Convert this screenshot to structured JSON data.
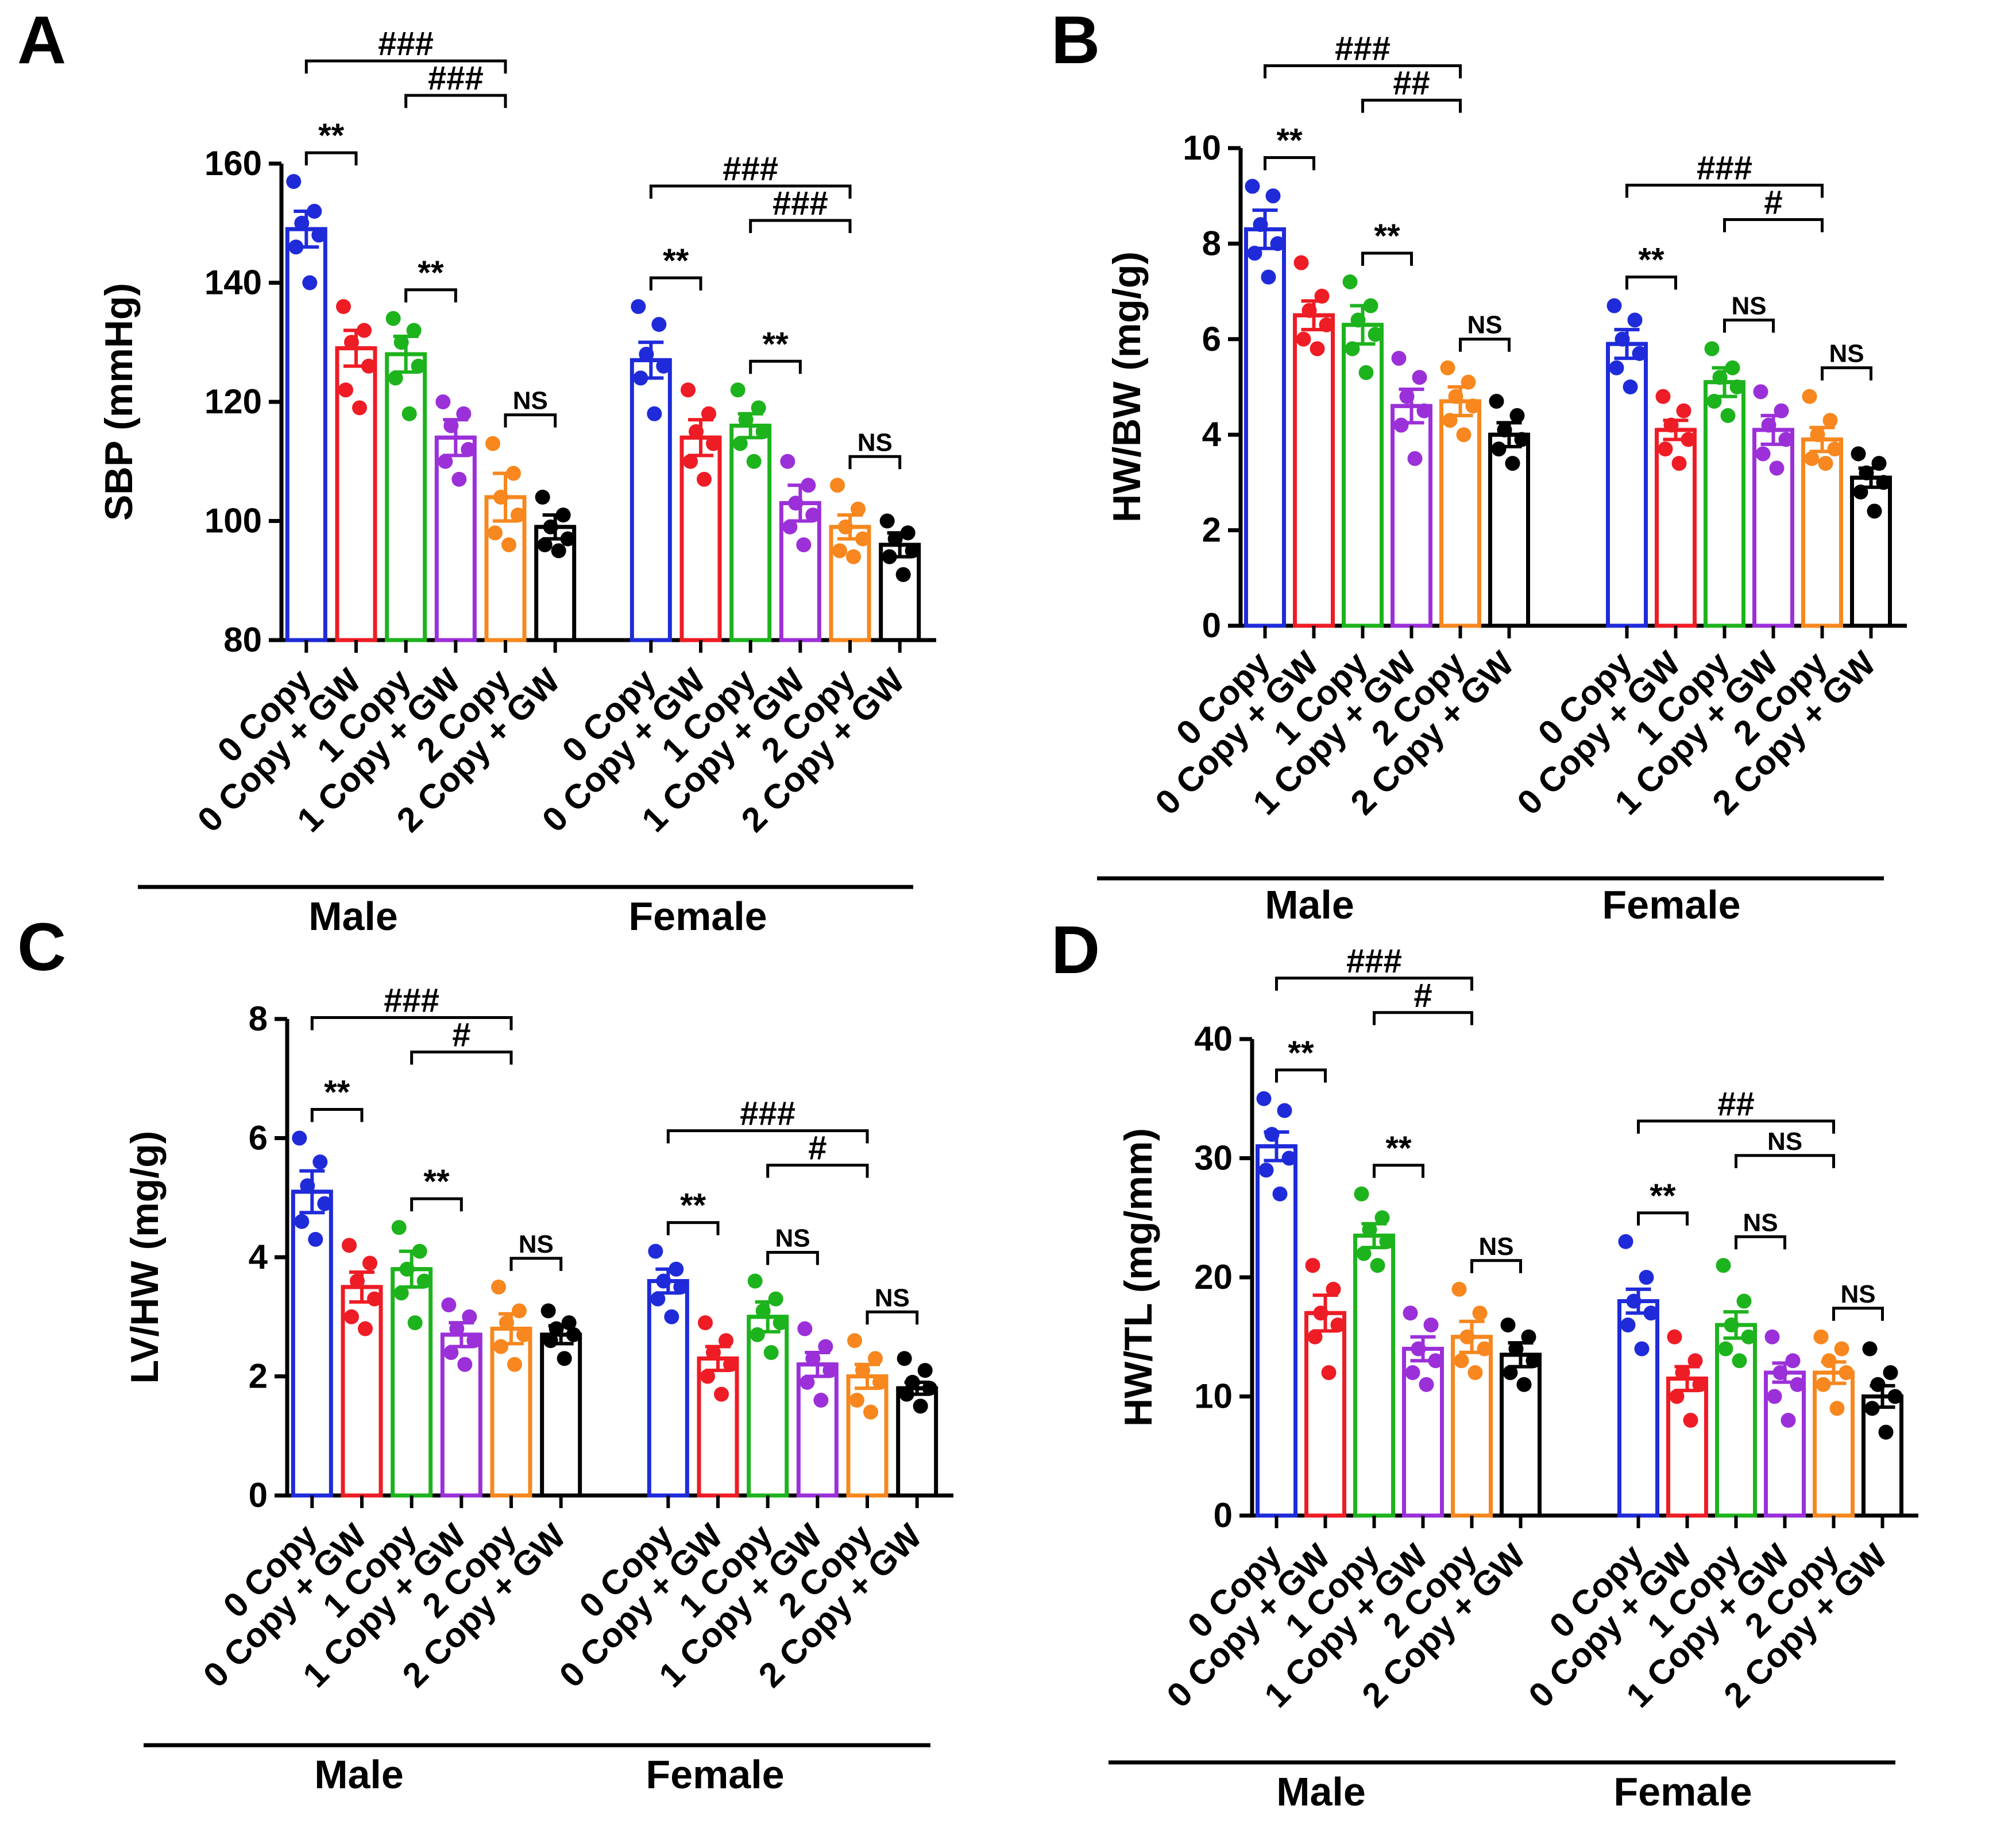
{
  "figure": {
    "categories": [
      "0 Copy",
      "0 Copy + GW",
      "1 Copy",
      "1 Copy + GW",
      "2 Copy",
      "2 Copy + GW"
    ],
    "groups": [
      "Male",
      "Female"
    ],
    "colors": [
      "#1f2bd9",
      "#ee1c25",
      "#1db31d",
      "#9b30d9",
      "#f7871e",
      "#000000"
    ]
  },
  "chart_data": [
    {
      "panel": "A",
      "type": "bar",
      "ylabel": "SBP (mmHg)",
      "ylim": [
        80,
        160
      ],
      "yticks": [
        80,
        100,
        120,
        140,
        160
      ],
      "series": [
        {
          "group": "Male",
          "values": [
            149,
            129,
            128,
            114,
            104,
            99
          ],
          "errors": [
            3,
            3,
            3,
            3,
            4,
            2
          ],
          "points": [
            [
              157,
              152,
              150,
              148,
              146,
              140
            ],
            [
              136,
              132,
              130,
              126,
              122,
              119
            ],
            [
              134,
              132,
              130,
              126,
              124,
              118
            ],
            [
              120,
              118,
              116,
              112,
              110,
              107
            ],
            [
              113,
              108,
              104,
              101,
              98,
              96
            ],
            [
              104,
              101,
              99,
              97,
              96,
              95
            ]
          ]
        },
        {
          "group": "Female",
          "values": [
            127,
            114,
            116,
            103,
            99,
            96
          ],
          "errors": [
            3,
            3,
            2,
            3,
            2,
            2
          ],
          "points": [
            [
              136,
              133,
              128,
              126,
              124,
              118
            ],
            [
              122,
              118,
              115,
              113,
              110,
              107
            ],
            [
              122,
              119,
              117,
              115,
              113,
              110
            ],
            [
              110,
              106,
              103,
              101,
              99,
              96
            ],
            [
              106,
              102,
              99,
              97,
              95,
              94
            ],
            [
              100,
              98,
              97,
              95,
              94,
              91
            ]
          ]
        }
      ],
      "brackets": [
        {
          "group": "Male",
          "from": 0,
          "to": 1,
          "level": 0,
          "label": "**"
        },
        {
          "group": "Male",
          "from": 0,
          "to": 4,
          "level": 1,
          "label": "###"
        },
        {
          "group": "Male",
          "from": 2,
          "to": 3,
          "level": 0,
          "label": "**"
        },
        {
          "group": "Male",
          "from": 2,
          "to": 4,
          "level": 1,
          "label": "###"
        },
        {
          "group": "Male",
          "from": 4,
          "to": 5,
          "level": 0,
          "label": "NS"
        },
        {
          "group": "Female",
          "from": 0,
          "to": 1,
          "level": 0,
          "label": "**"
        },
        {
          "group": "Female",
          "from": 0,
          "to": 4,
          "level": 1,
          "label": "###"
        },
        {
          "group": "Female",
          "from": 2,
          "to": 3,
          "level": 0,
          "label": "**"
        },
        {
          "group": "Female",
          "from": 2,
          "to": 4,
          "level": 1,
          "label": "###"
        },
        {
          "group": "Female",
          "from": 4,
          "to": 5,
          "level": 0,
          "label": "NS"
        }
      ]
    },
    {
      "panel": "B",
      "type": "bar",
      "ylabel": "HW/BW (mg/g)",
      "ylim": [
        0,
        10
      ],
      "yticks": [
        0,
        2,
        4,
        6,
        8,
        10
      ],
      "series": [
        {
          "group": "Male",
          "values": [
            8.3,
            6.5,
            6.3,
            4.6,
            4.7,
            4.0
          ],
          "errors": [
            0.4,
            0.3,
            0.4,
            0.35,
            0.3,
            0.25
          ],
          "points": [
            [
              9.2,
              9.0,
              8.4,
              8.0,
              7.8,
              7.3
            ],
            [
              7.6,
              6.9,
              6.6,
              6.3,
              6.0,
              5.8
            ],
            [
              7.2,
              6.7,
              6.4,
              6.1,
              5.8,
              5.3
            ],
            [
              5.6,
              5.2,
              4.8,
              4.5,
              4.2,
              3.5
            ],
            [
              5.4,
              5.1,
              4.8,
              4.6,
              4.3,
              4.0
            ],
            [
              4.7,
              4.4,
              4.1,
              3.9,
              3.7,
              3.4
            ]
          ]
        },
        {
          "group": "Female",
          "values": [
            5.9,
            4.1,
            5.1,
            4.1,
            3.9,
            3.1
          ],
          "errors": [
            0.3,
            0.2,
            0.3,
            0.3,
            0.25,
            0.2
          ],
          "points": [
            [
              6.7,
              6.4,
              6.0,
              5.7,
              5.4,
              5.0
            ],
            [
              4.8,
              4.5,
              4.2,
              3.9,
              3.7,
              3.4
            ],
            [
              5.8,
              5.4,
              5.2,
              5.0,
              4.7,
              4.4
            ],
            [
              4.9,
              4.5,
              4.2,
              3.9,
              3.6,
              3.3
            ],
            [
              4.8,
              4.3,
              4.0,
              3.7,
              3.5,
              3.4
            ],
            [
              3.6,
              3.4,
              3.2,
              3.0,
              2.8,
              2.4
            ]
          ]
        }
      ],
      "brackets": [
        {
          "group": "Male",
          "from": 0,
          "to": 1,
          "level": 0,
          "label": "**"
        },
        {
          "group": "Male",
          "from": 0,
          "to": 4,
          "level": 1,
          "label": "###"
        },
        {
          "group": "Male",
          "from": 2,
          "to": 3,
          "level": 0,
          "label": "**"
        },
        {
          "group": "Male",
          "from": 2,
          "to": 4,
          "level": 1,
          "label": "##"
        },
        {
          "group": "Male",
          "from": 4,
          "to": 5,
          "level": 0,
          "label": "NS"
        },
        {
          "group": "Female",
          "from": 0,
          "to": 1,
          "level": 0,
          "label": "**"
        },
        {
          "group": "Female",
          "from": 0,
          "to": 4,
          "level": 1,
          "label": "###"
        },
        {
          "group": "Female",
          "from": 2,
          "to": 3,
          "level": 0,
          "label": "NS"
        },
        {
          "group": "Female",
          "from": 2,
          "to": 4,
          "level": 1,
          "label": "#"
        },
        {
          "group": "Female",
          "from": 4,
          "to": 5,
          "level": 0,
          "label": "NS"
        }
      ]
    },
    {
      "panel": "C",
      "type": "bar",
      "ylabel": "LV/HW (mg/g)",
      "ylim": [
        0,
        8
      ],
      "yticks": [
        0,
        2,
        4,
        6,
        8
      ],
      "series": [
        {
          "group": "Male",
          "values": [
            5.1,
            3.5,
            3.8,
            2.7,
            2.8,
            2.7
          ],
          "errors": [
            0.35,
            0.25,
            0.3,
            0.2,
            0.25,
            0.15
          ],
          "points": [
            [
              6.0,
              5.6,
              5.2,
              4.9,
              4.6,
              4.3
            ],
            [
              4.2,
              3.9,
              3.6,
              3.3,
              3.0,
              2.8
            ],
            [
              4.5,
              4.1,
              3.8,
              3.6,
              3.4,
              2.9
            ],
            [
              3.2,
              3.0,
              2.8,
              2.6,
              2.4,
              2.2
            ],
            [
              3.5,
              3.1,
              2.9,
              2.7,
              2.5,
              2.2
            ],
            [
              3.1,
              2.9,
              2.8,
              2.7,
              2.6,
              2.3
            ]
          ]
        },
        {
          "group": "Female",
          "values": [
            3.6,
            2.3,
            3.0,
            2.2,
            2.0,
            1.8
          ],
          "errors": [
            0.2,
            0.2,
            0.25,
            0.2,
            0.2,
            0.1
          ],
          "points": [
            [
              4.1,
              3.8,
              3.6,
              3.5,
              3.3,
              3.0
            ],
            [
              2.9,
              2.6,
              2.4,
              2.2,
              2.0,
              1.7
            ],
            [
              3.6,
              3.3,
              3.1,
              2.9,
              2.7,
              2.4
            ],
            [
              2.8,
              2.5,
              2.3,
              2.1,
              1.9,
              1.6
            ],
            [
              2.6,
              2.3,
              2.1,
              1.9,
              1.6,
              1.4
            ],
            [
              2.3,
              2.1,
              1.9,
              1.8,
              1.7,
              1.5
            ]
          ]
        }
      ],
      "brackets": [
        {
          "group": "Male",
          "from": 0,
          "to": 1,
          "level": 0,
          "label": "**"
        },
        {
          "group": "Male",
          "from": 0,
          "to": 4,
          "level": 1,
          "label": "###"
        },
        {
          "group": "Male",
          "from": 2,
          "to": 3,
          "level": 0,
          "label": "**"
        },
        {
          "group": "Male",
          "from": 2,
          "to": 4,
          "level": 1,
          "label": "#"
        },
        {
          "group": "Male",
          "from": 4,
          "to": 5,
          "level": 0,
          "label": "NS"
        },
        {
          "group": "Female",
          "from": 0,
          "to": 1,
          "level": 0,
          "label": "**"
        },
        {
          "group": "Female",
          "from": 0,
          "to": 4,
          "level": 1,
          "label": "###"
        },
        {
          "group": "Female",
          "from": 2,
          "to": 3,
          "level": 0,
          "label": "NS"
        },
        {
          "group": "Female",
          "from": 2,
          "to": 4,
          "level": 1,
          "label": "#"
        },
        {
          "group": "Female",
          "from": 4,
          "to": 5,
          "level": 0,
          "label": "NS"
        }
      ]
    },
    {
      "panel": "D",
      "type": "bar",
      "ylabel": "HW/TL (mg/mm)",
      "ylim": [
        0,
        40
      ],
      "yticks": [
        0,
        10,
        20,
        30,
        40
      ],
      "series": [
        {
          "group": "Male",
          "values": [
            31,
            17,
            23.5,
            14,
            15,
            13.5
          ],
          "errors": [
            1.2,
            1.5,
            1.0,
            1.0,
            1.3,
            1.0
          ],
          "points": [
            [
              35,
              34,
              32,
              30,
              29,
              27
            ],
            [
              21,
              19,
              17,
              16,
              15,
              12
            ],
            [
              27,
              25,
              24,
              23,
              22,
              21
            ],
            [
              17,
              16,
              14,
              13,
              12,
              11
            ],
            [
              19,
              17,
              15,
              14,
              13,
              12
            ],
            [
              16,
              15,
              14,
              13,
              12,
              11
            ]
          ]
        },
        {
          "group": "Female",
          "values": [
            18,
            11.5,
            16,
            12,
            12,
            10
          ],
          "errors": [
            1.0,
            1.0,
            1.1,
            0.8,
            0.9,
            0.9
          ],
          "points": [
            [
              23,
              20,
              18,
              17,
              16,
              14
            ],
            [
              15,
              13,
              12,
              11,
              10,
              8
            ],
            [
              21,
              18,
              16,
              15,
              14,
              13
            ],
            [
              15,
              13,
              12,
              11,
              10,
              8
            ],
            [
              15,
              14,
              13,
              12,
              11,
              9
            ],
            [
              14,
              12,
              11,
              10,
              9,
              7
            ]
          ]
        }
      ],
      "brackets": [
        {
          "group": "Male",
          "from": 0,
          "to": 1,
          "level": 0,
          "label": "**"
        },
        {
          "group": "Male",
          "from": 0,
          "to": 4,
          "level": 1,
          "label": "###"
        },
        {
          "group": "Male",
          "from": 2,
          "to": 3,
          "level": 0,
          "label": "**"
        },
        {
          "group": "Male",
          "from": 2,
          "to": 4,
          "level": 1,
          "label": "#"
        },
        {
          "group": "Male",
          "from": 4,
          "to": 5,
          "level": 0,
          "label": "NS"
        },
        {
          "group": "Female",
          "from": 0,
          "to": 1,
          "level": 0,
          "label": "**"
        },
        {
          "group": "Female",
          "from": 0,
          "to": 4,
          "level": 1,
          "label": "##"
        },
        {
          "group": "Female",
          "from": 2,
          "to": 3,
          "level": 0,
          "label": "NS"
        },
        {
          "group": "Female",
          "from": 2,
          "to": 4,
          "level": 1,
          "label": "NS"
        },
        {
          "group": "Female",
          "from": 4,
          "to": 5,
          "level": 0,
          "label": "NS"
        }
      ]
    }
  ]
}
